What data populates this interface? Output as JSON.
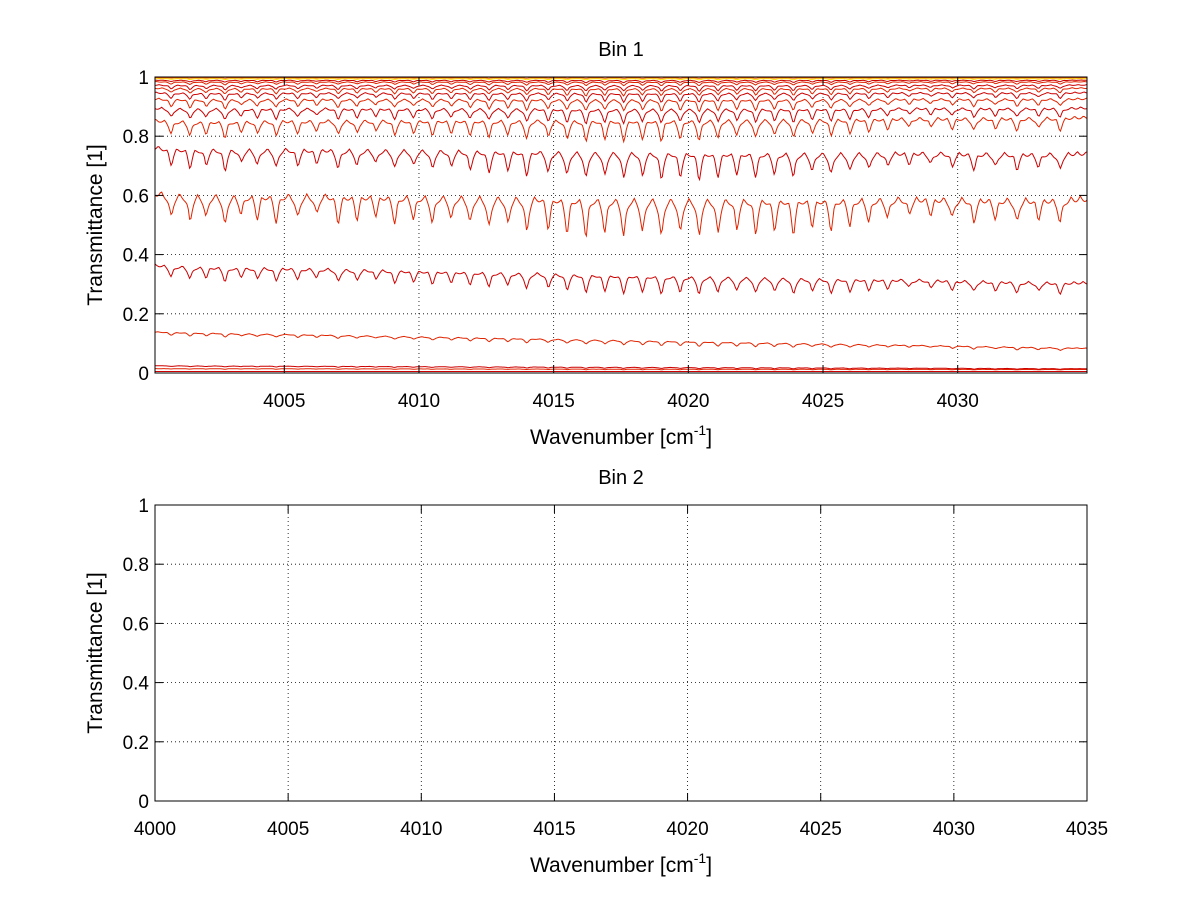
{
  "chart_data": [
    {
      "type": "line",
      "title": "Bin 1",
      "xlabel": "Wavenumber [cm",
      "xlabel_superscript": "-1",
      "xlabel_suffix": "]",
      "ylabel": "Transmittance [1]",
      "xlim": [
        4000.2,
        4034.8
      ],
      "ylim": [
        0,
        1
      ],
      "x_ticks": [
        4005,
        4010,
        4015,
        4020,
        4025,
        4030
      ],
      "x_tick_labels": [
        "4005",
        "4010",
        "4015",
        "4020",
        "4025",
        "4030"
      ],
      "y_ticks": [
        0,
        0.2,
        0.4,
        0.6,
        0.8,
        1
      ],
      "y_tick_labels": [
        "0",
        "0.2",
        "0.4",
        "0.6",
        "0.8",
        "1"
      ],
      "grid": true,
      "legend": "none",
      "line_colors": [
        "#cc0000",
        "#e02400",
        "#f05000",
        "#ff8000",
        "#ffc000",
        "#ffe400"
      ],
      "absorption_lines_x": [
        4000.8,
        4001.5,
        4002.1,
        4002.8,
        4003.4,
        4004.0,
        4004.7,
        4005.5,
        4006.2,
        4007.0,
        4007.7,
        4008.4,
        4009.1,
        4009.8,
        4010.5,
        4011.2,
        4011.9,
        4012.6,
        4013.3,
        4014.0,
        4014.8,
        4015.5,
        4016.2,
        4016.9,
        4017.6,
        4018.3,
        4019.0,
        4019.7,
        4020.4,
        4021.1,
        4021.8,
        4022.5,
        4023.2,
        4023.9,
        4024.6,
        4025.3,
        4026.0,
        4026.7,
        4027.4,
        4028.2,
        4029.0,
        4029.8,
        4030.6,
        4031.4,
        4032.2,
        4033.0,
        4033.8
      ],
      "absorption_depth_scale": [
        0.6,
        0.7,
        0.6,
        0.8,
        0.5,
        0.6,
        0.7,
        0.6,
        0.5,
        0.7,
        0.6,
        0.5,
        0.7,
        0.6,
        0.7,
        0.6,
        0.7,
        0.8,
        0.7,
        0.9,
        0.8,
        0.9,
        1.0,
        0.9,
        1.0,
        0.9,
        1.0,
        0.9,
        1.0,
        0.9,
        0.8,
        0.9,
        0.8,
        0.9,
        0.7,
        0.8,
        0.7,
        0.6,
        0.5,
        0.4,
        0.4,
        0.5,
        0.6,
        0.5,
        0.6,
        0.5,
        0.6
      ],
      "series": [
        {
          "baseline_start": 0.005,
          "baseline_end": 0.005,
          "depth": 0.0
        },
        {
          "baseline_start": 0.015,
          "baseline_end": 0.012,
          "depth": 0.002
        },
        {
          "baseline_start": 0.025,
          "baseline_end": 0.015,
          "depth": 0.004
        },
        {
          "baseline_start": 0.14,
          "baseline_end": 0.085,
          "depth": 0.015
        },
        {
          "baseline_start": 0.37,
          "baseline_end": 0.31,
          "depth": 0.06
        },
        {
          "baseline_start": 0.62,
          "baseline_end": 0.6,
          "depth": 0.13
        },
        {
          "baseline_start": 0.77,
          "baseline_end": 0.75,
          "depth": 0.09
        },
        {
          "baseline_start": 0.86,
          "baseline_end": 0.87,
          "depth": 0.07
        },
        {
          "baseline_start": 0.9,
          "baseline_end": 0.9,
          "depth": 0.05
        },
        {
          "baseline_start": 0.93,
          "baseline_end": 0.93,
          "depth": 0.04
        },
        {
          "baseline_start": 0.95,
          "baseline_end": 0.95,
          "depth": 0.03
        },
        {
          "baseline_start": 0.965,
          "baseline_end": 0.965,
          "depth": 0.025
        },
        {
          "baseline_start": 0.975,
          "baseline_end": 0.975,
          "depth": 0.02
        },
        {
          "baseline_start": 0.985,
          "baseline_end": 0.985,
          "depth": 0.012
        },
        {
          "baseline_start": 0.99,
          "baseline_end": 0.99,
          "depth": 0.008
        },
        {
          "baseline_start": 0.995,
          "baseline_end": 0.995,
          "depth": 0.004
        },
        {
          "baseline_start": 0.998,
          "baseline_end": 0.998,
          "depth": 0.002
        }
      ]
    },
    {
      "type": "line",
      "title": "Bin 2",
      "xlabel": "Wavenumber [cm",
      "xlabel_superscript": "-1",
      "xlabel_suffix": "]",
      "ylabel": "Transmittance [1]",
      "xlim": [
        4000,
        4035
      ],
      "ylim": [
        0,
        1
      ],
      "x_ticks": [
        4000,
        4005,
        4010,
        4015,
        4020,
        4025,
        4030,
        4035
      ],
      "x_tick_labels": [
        "4000",
        "4005",
        "4010",
        "4015",
        "4020",
        "4025",
        "4030",
        "4035"
      ],
      "y_ticks": [
        0,
        0.2,
        0.4,
        0.6,
        0.8,
        1
      ],
      "y_tick_labels": [
        "0",
        "0.2",
        "0.4",
        "0.6",
        "0.8",
        "1"
      ],
      "grid": true,
      "legend": "none",
      "series": []
    }
  ]
}
